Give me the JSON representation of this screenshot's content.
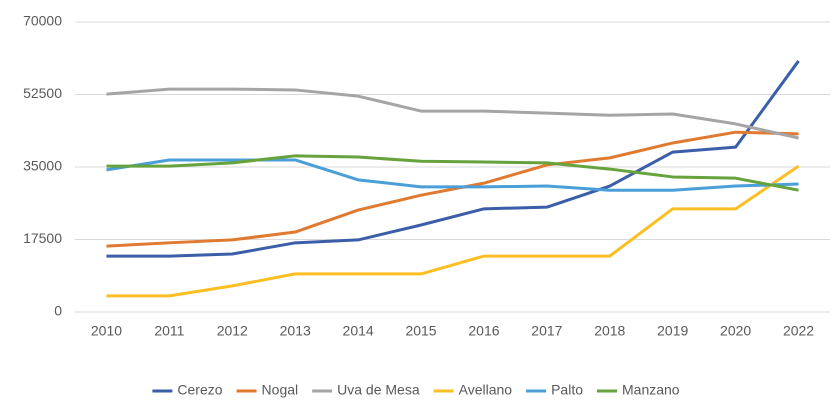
{
  "chart_data": {
    "type": "line",
    "categories": [
      "2010",
      "2011",
      "2012",
      "2013",
      "2014",
      "2015",
      "2016",
      "2017",
      "2018",
      "2019",
      "2020",
      "2022"
    ],
    "series": [
      {
        "name": "Cerezo",
        "color": "#3a5ea8",
        "values": [
          13500,
          13500,
          14000,
          16700,
          17400,
          21000,
          24900,
          25300,
          30400,
          38600,
          39800,
          60600
        ]
      },
      {
        "name": "Nogal",
        "color": "#e07a30",
        "values": [
          15900,
          16700,
          17400,
          19300,
          24600,
          28200,
          31100,
          35500,
          37200,
          40800,
          43400,
          43000
        ]
      },
      {
        "name": "Uva de Mesa",
        "color": "#a5a5a5",
        "values": [
          52600,
          53800,
          53800,
          53600,
          52100,
          48500,
          48500,
          48000,
          47500,
          47800,
          45400,
          42000
        ]
      },
      {
        "name": "Avellano",
        "color": "#fbbf23",
        "values": [
          3900,
          3900,
          6300,
          9200,
          9200,
          9200,
          13500,
          13500,
          13500,
          24900,
          24900,
          35200
        ]
      },
      {
        "name": "Palto",
        "color": "#4a9fd8",
        "values": [
          34300,
          36700,
          36700,
          36700,
          31900,
          30200,
          30200,
          30400,
          29400,
          29400,
          30400,
          30900
        ]
      },
      {
        "name": "Manzano",
        "color": "#66a33d",
        "values": [
          35200,
          35200,
          36000,
          37700,
          37400,
          36400,
          36200,
          36000,
          34500,
          32600,
          32300,
          29400
        ]
      }
    ],
    "ylim": [
      0,
      70000
    ],
    "yticks": [
      0,
      17500,
      35000,
      52500,
      70000
    ],
    "grid": true,
    "legend": "bottom"
  }
}
